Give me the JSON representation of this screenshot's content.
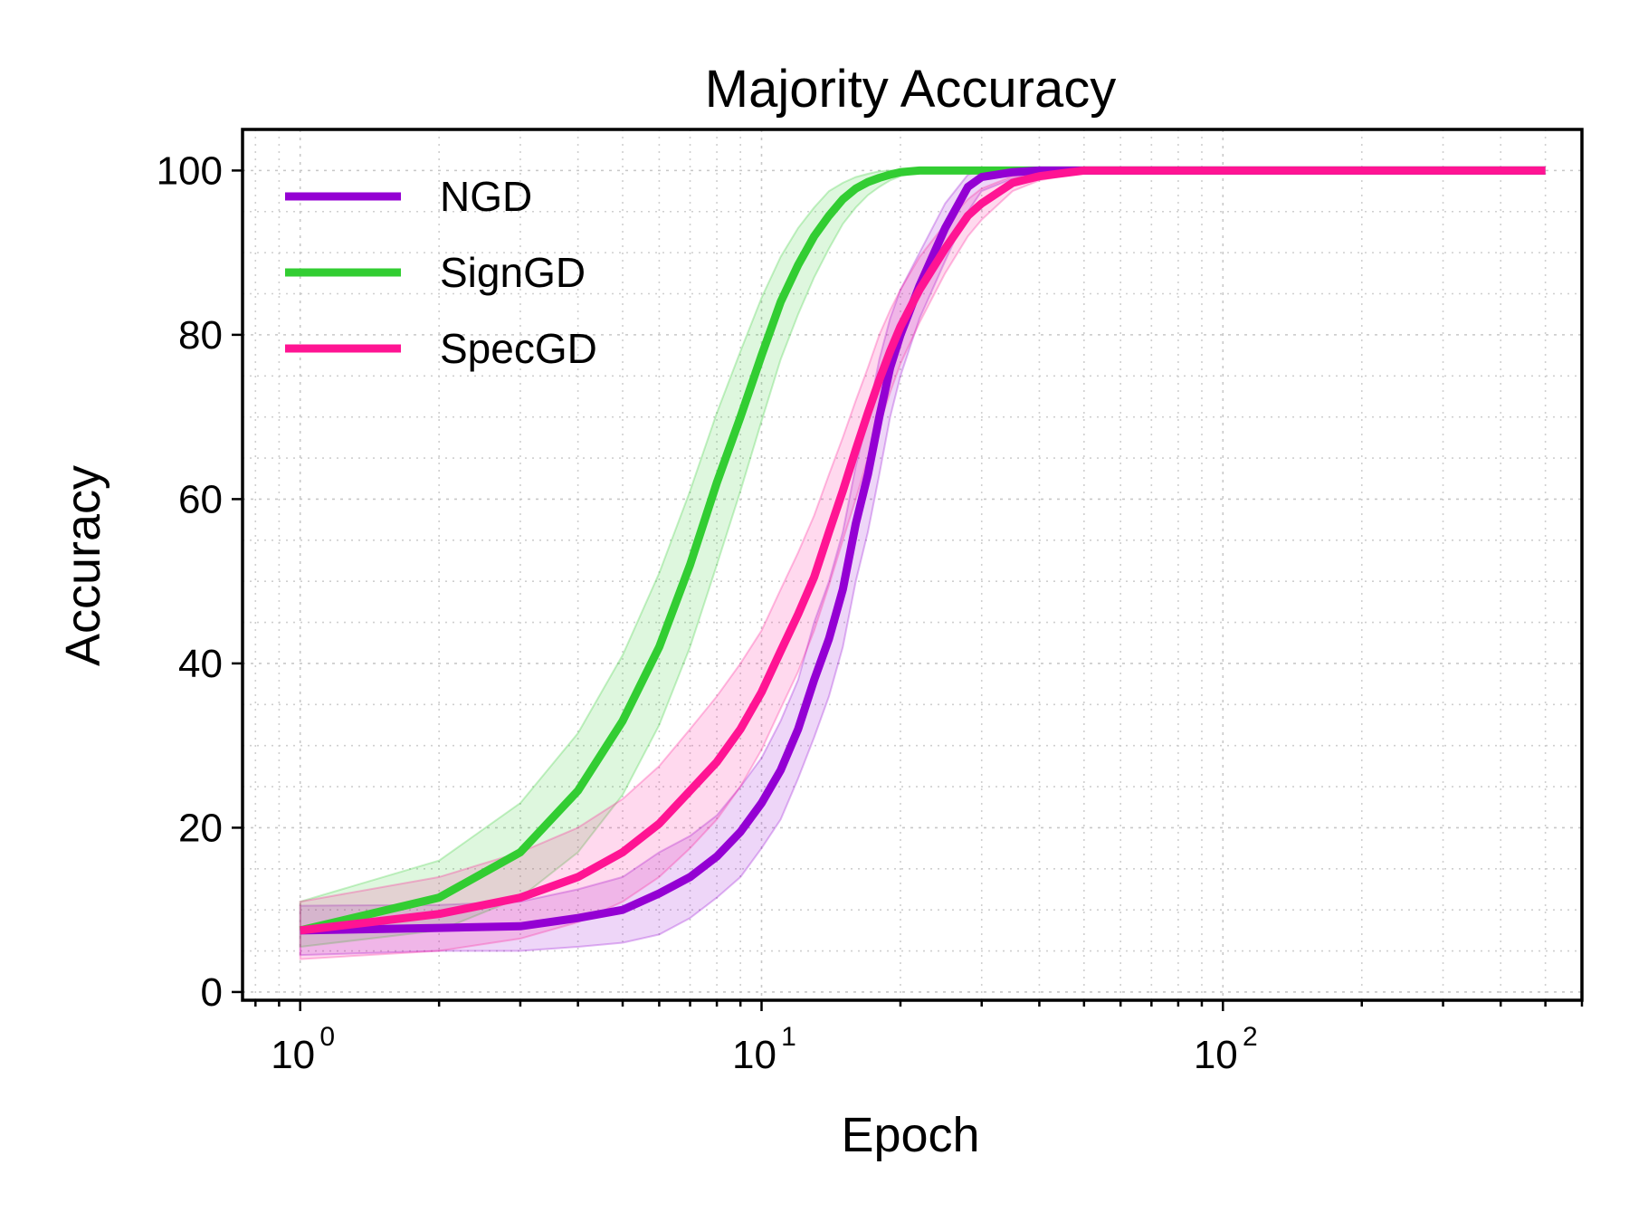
{
  "chart_data": {
    "type": "line",
    "title": "Majority Accuracy",
    "xlabel": "Epoch",
    "ylabel": "Accuracy",
    "xscale": "log",
    "xlim": [
      0.75,
      600
    ],
    "ylim": [
      -1,
      105
    ],
    "yticks": [
      0,
      20,
      40,
      60,
      80,
      100
    ],
    "xticks": [
      {
        "value": 1,
        "base": "10",
        "exp": "0"
      },
      {
        "value": 10,
        "base": "10",
        "exp": "1"
      },
      {
        "value": 100,
        "base": "10",
        "exp": "2"
      }
    ],
    "legend_position": "top-left",
    "grid": true,
    "x": [
      1,
      2,
      3,
      4,
      5,
      6,
      7,
      8,
      9,
      10,
      11,
      12,
      13,
      14,
      15,
      16,
      17,
      18,
      19,
      20,
      22,
      25,
      28,
      30,
      35,
      40,
      50,
      70,
      100,
      200,
      500
    ],
    "series": [
      {
        "name": "NGD",
        "color": "#9400D3",
        "mean": [
          7.5,
          7.8,
          8.0,
          9.0,
          10.0,
          12.0,
          14.0,
          16.5,
          19.5,
          23.0,
          27.0,
          32.0,
          38.0,
          43.0,
          49.0,
          57.0,
          63.0,
          70.0,
          76.0,
          80.0,
          86.0,
          93.0,
          98.0,
          99.2,
          99.8,
          100,
          100,
          100,
          100,
          100,
          100
        ],
        "lower": [
          4.5,
          5.0,
          5.0,
          5.5,
          6.0,
          7.0,
          9.0,
          11.5,
          14.0,
          17.5,
          21.0,
          26.0,
          31.0,
          36.0,
          42.0,
          50.0,
          56.0,
          63.0,
          70.0,
          75.0,
          82.0,
          89.0,
          95.0,
          97.5,
          99.0,
          99.8,
          100,
          100,
          100,
          100,
          100
        ],
        "upper": [
          10.5,
          10.6,
          11.0,
          12.5,
          14.0,
          17.0,
          19.0,
          21.5,
          25.0,
          28.5,
          33.0,
          38.0,
          45.0,
          50.0,
          56.0,
          64.0,
          70.0,
          77.0,
          82.0,
          85.5,
          90.0,
          96.0,
          99.5,
          100,
          100,
          100,
          100,
          100,
          100,
          100,
          100
        ]
      },
      {
        "name": "SignGD",
        "color": "#32CD32",
        "mean": [
          7.5,
          11.5,
          17.0,
          24.5,
          33.0,
          42.0,
          52.0,
          62.0,
          70.0,
          77.5,
          84.0,
          88.5,
          92.0,
          94.5,
          96.5,
          97.8,
          98.6,
          99.1,
          99.5,
          99.8,
          100,
          100,
          100,
          100,
          100,
          100,
          100,
          100,
          100,
          100,
          100
        ],
        "lower": [
          5.5,
          7.5,
          11.5,
          17.0,
          24.0,
          32.5,
          42.0,
          52.0,
          61.0,
          69.5,
          77.0,
          82.5,
          87.0,
          90.5,
          93.5,
          95.5,
          97.0,
          98.0,
          98.8,
          99.3,
          99.8,
          100,
          100,
          100,
          100,
          100,
          100,
          100,
          100,
          100,
          100
        ],
        "upper": [
          11.0,
          16.0,
          23.0,
          31.5,
          41.0,
          51.0,
          61.0,
          70.5,
          78.0,
          84.5,
          89.5,
          93.0,
          95.5,
          97.5,
          98.5,
          99.2,
          99.6,
          99.9,
          100,
          100,
          100,
          100,
          100,
          100,
          100,
          100,
          100,
          100,
          100,
          100,
          100
        ]
      },
      {
        "name": "SpecGD",
        "color": "#FF1493",
        "mean": [
          7.5,
          9.5,
          11.5,
          14.0,
          17.0,
          20.5,
          24.5,
          28.0,
          32.0,
          36.5,
          41.5,
          46.0,
          50.5,
          56.0,
          61.0,
          66.0,
          70.5,
          74.5,
          78.0,
          81.0,
          85.5,
          90.5,
          94.5,
          96.0,
          98.5,
          99.3,
          100,
          100,
          100,
          100,
          100
        ],
        "lower": [
          4.0,
          5.0,
          6.5,
          8.5,
          11.0,
          14.0,
          17.5,
          21.0,
          25.0,
          29.5,
          34.5,
          39.0,
          44.0,
          49.5,
          55.0,
          60.0,
          65.0,
          69.0,
          73.0,
          76.5,
          81.5,
          87.5,
          92.0,
          94.0,
          97.5,
          98.8,
          99.8,
          100,
          100,
          100,
          100
        ],
        "upper": [
          11.0,
          14.0,
          17.0,
          20.0,
          23.5,
          27.5,
          32.0,
          36.0,
          40.0,
          44.0,
          49.0,
          53.5,
          58.0,
          63.0,
          67.5,
          72.0,
          76.0,
          80.0,
          83.0,
          85.5,
          89.5,
          93.5,
          96.5,
          97.8,
          99.3,
          99.8,
          100,
          100,
          100,
          100,
          100
        ]
      }
    ]
  }
}
